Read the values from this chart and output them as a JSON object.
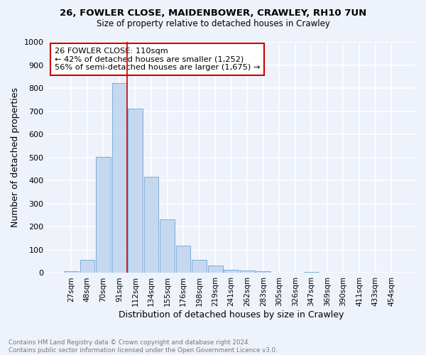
{
  "title1": "26, FOWLER CLOSE, MAIDENBOWER, CRAWLEY, RH10 7UN",
  "title2": "Size of property relative to detached houses in Crawley",
  "xlabel": "Distribution of detached houses by size in Crawley",
  "ylabel": "Number of detached properties",
  "categories": [
    "27sqm",
    "48sqm",
    "70sqm",
    "91sqm",
    "112sqm",
    "134sqm",
    "155sqm",
    "176sqm",
    "198sqm",
    "219sqm",
    "241sqm",
    "262sqm",
    "283sqm",
    "305sqm",
    "326sqm",
    "347sqm",
    "369sqm",
    "390sqm",
    "411sqm",
    "433sqm",
    "454sqm"
  ],
  "values": [
    8,
    57,
    503,
    822,
    710,
    415,
    232,
    118,
    57,
    33,
    15,
    10,
    8,
    0,
    0,
    5,
    0,
    0,
    0,
    0,
    0
  ],
  "bar_color": "#c5d8f0",
  "bar_edge_color": "#7bafd4",
  "vline_x": 3.5,
  "vline_color": "#cc0000",
  "annotation_text": "26 FOWLER CLOSE: 110sqm\n← 42% of detached houses are smaller (1,252)\n56% of semi-detached houses are larger (1,675) →",
  "annotation_box_color": "#ffffff",
  "annotation_box_edge": "#cc0000",
  "footnote": "Contains HM Land Registry data © Crown copyright and database right 2024.\nContains public sector information licensed under the Open Government Licence v3.0.",
  "ylim": [
    0,
    1000
  ],
  "background_color": "#eef2fb",
  "grid_color": "#ffffff"
}
